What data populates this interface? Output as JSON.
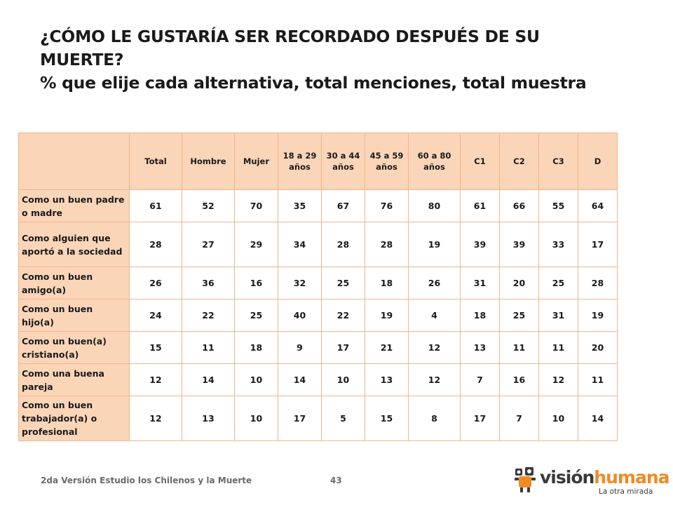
{
  "title": {
    "line1": "¿CÓMO LE GUSTARÍA SER RECORDADO DESPUÉS DE  SU",
    "line2": "MUERTE?",
    "line3": "% que elije cada alternativa, total menciones, total muestra"
  },
  "table": {
    "columns": [
      "Total",
      "Hombre",
      "Mujer",
      "18 a 29 años",
      "30 a 44 años",
      "45 a 59 años",
      "60 a 80 años",
      "C1",
      "C2",
      "C3",
      "D"
    ],
    "rows": [
      {
        "label": "Como un buen padre o madre",
        "values": [
          "61",
          "52",
          "70",
          "35",
          "67",
          "76",
          "80",
          "61",
          "66",
          "55",
          "64"
        ]
      },
      {
        "label": "Como alguien que aportó a la sociedad",
        "values": [
          "28",
          "27",
          "29",
          "34",
          "28",
          "28",
          "19",
          "39",
          "39",
          "33",
          "17"
        ]
      },
      {
        "label": "Como un buen amigo(a)",
        "values": [
          "26",
          "36",
          "16",
          "32",
          "25",
          "18",
          "26",
          "31",
          "20",
          "25",
          "28"
        ]
      },
      {
        "label": "Como un buen hijo(a)",
        "values": [
          "24",
          "22",
          "25",
          "40",
          "22",
          "19",
          "4",
          "18",
          "25",
          "31",
          "19"
        ]
      },
      {
        "label": "Como un buen(a) cristiano(a)",
        "values": [
          "15",
          "11",
          "18",
          "9",
          "17",
          "21",
          "12",
          "13",
          "11",
          "11",
          "20"
        ]
      },
      {
        "label": "Como una buena pareja",
        "values": [
          "12",
          "14",
          "10",
          "14",
          "10",
          "13",
          "12",
          "7",
          "16",
          "12",
          "11"
        ]
      },
      {
        "label": "Como un buen trabajador(a) o profesional",
        "values": [
          "12",
          "13",
          "10",
          "17",
          "5",
          "15",
          "8",
          "17",
          "7",
          "10",
          "14"
        ]
      }
    ]
  },
  "footer": {
    "study": "2da Versión Estudio los Chilenos y la Muerte",
    "page": "43"
  },
  "logo": {
    "name_part1": "visión",
    "name_part2": "humana",
    "tagline": "La otra mirada"
  },
  "colors": {
    "header_fill": "#fbd5b8",
    "border": "#f2b48a",
    "brand_orange": "#f08a24"
  }
}
